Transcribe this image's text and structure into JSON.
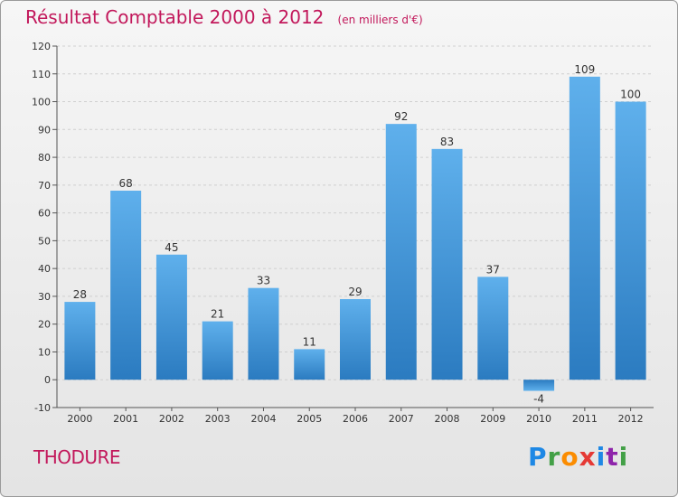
{
  "title": "Résultat Comptable 2000 à 2012",
  "unit": "(en milliers d'€)",
  "commune": "THODURE",
  "logo": {
    "text": "Proxiti",
    "name": "proxiti-logo"
  },
  "colors": {
    "bar": "#3d8fd4",
    "title": "#c2185b",
    "grid": "#cfcfcf"
  },
  "chart_data": {
    "type": "bar",
    "categories": [
      "2000",
      "2001",
      "2002",
      "2003",
      "2004",
      "2005",
      "2006",
      "2007",
      "2008",
      "2009",
      "2010",
      "2011",
      "2012"
    ],
    "values": [
      28,
      68,
      45,
      21,
      33,
      11,
      29,
      92,
      83,
      37,
      -4,
      109,
      100
    ],
    "data_labels": [
      "28",
      "68",
      "45",
      "21",
      "33",
      "11",
      "29",
      "92",
      "83",
      "37",
      "-4",
      "109",
      "100"
    ],
    "yticks": [
      -10,
      0,
      10,
      20,
      30,
      40,
      50,
      60,
      70,
      80,
      90,
      100,
      110,
      120
    ],
    "ylim": [
      -10,
      120
    ],
    "grid": true,
    "legend": "none"
  }
}
